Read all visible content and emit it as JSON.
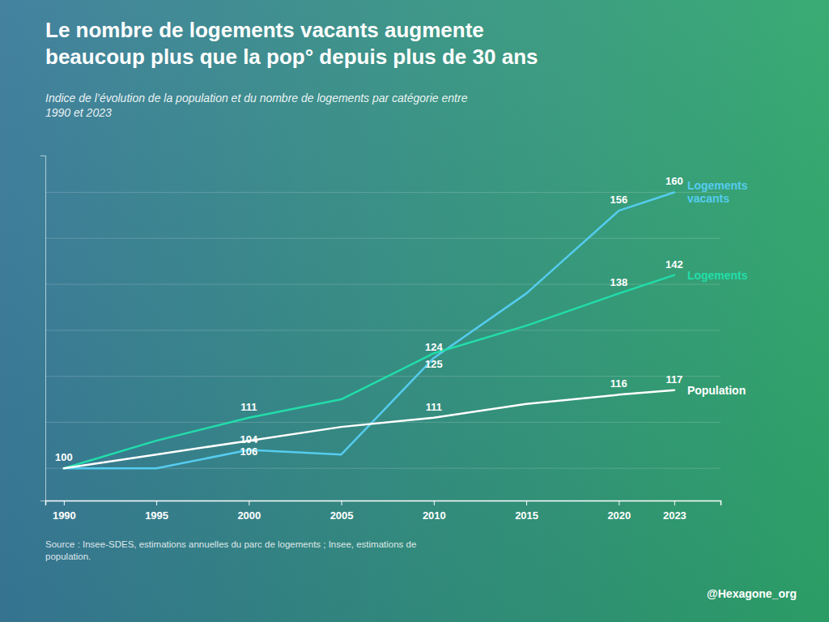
{
  "chart_data": {
    "type": "line",
    "title": "Le nombre de logements vacants augmente\nbeaucoup plus que la pop° depuis plus de 30 ans",
    "subtitle": "Indice de l’évolution de la population et du nombre de logements par catégorie entre\n1990 et 2023",
    "source": "Source :  Insee-SDES, estimations annuelles du parc de logements ; Insee, estimations de\npopulation.",
    "x": [
      1990,
      1995,
      2000,
      2005,
      2010,
      2015,
      2020,
      2023
    ],
    "series": [
      {
        "name": "Logements\nvacants",
        "color": "#55CCEE",
        "values": [
          100,
          100,
          104,
          103,
          124,
          138,
          156,
          160
        ]
      },
      {
        "name": "Logements",
        "color": "#22DDAA",
        "values": [
          100,
          106,
          111,
          115,
          125,
          131,
          138,
          142
        ]
      },
      {
        "name": "Population",
        "color": "#FFFFFF",
        "values": [
          100,
          103,
          106,
          109,
          111,
          114,
          116,
          117
        ]
      }
    ],
    "xlim": [
      1989,
      2025.5
    ],
    "xticks": [
      1990,
      1995,
      2000,
      2005,
      2010,
      2015,
      2020,
      2023
    ],
    "ylim": [
      93,
      168
    ],
    "yticks": [
      100,
      110,
      120,
      130,
      140,
      150,
      160
    ],
    "grid": true,
    "tick_labels": "x",
    "annotations": [
      {
        "text": "100",
        "x": 1990,
        "y": 100
      },
      {
        "text": "104",
        "x": 2000,
        "y": 104
      },
      {
        "text": "124",
        "x": 2010,
        "y": 124
      },
      {
        "text": "156",
        "x": 2020,
        "y": 156
      },
      {
        "text": "160",
        "x": 2023,
        "y": 160
      },
      {
        "text": "111",
        "x": 2000,
        "y": 111
      },
      {
        "text": "125",
        "x": 2010,
        "y": 125
      },
      {
        "text": "138",
        "x": 2020,
        "y": 138
      },
      {
        "text": "142",
        "x": 2023,
        "y": 142
      },
      {
        "text": "106",
        "x": 2000,
        "y": 106
      },
      {
        "text": "111",
        "x": 2010,
        "y": 111
      },
      {
        "text": "116",
        "x": 2020,
        "y": 116
      },
      {
        "text": "117",
        "x": 2023,
        "y": 117
      },
      {
        "text": "@Hexagone_org"
      }
    ]
  }
}
